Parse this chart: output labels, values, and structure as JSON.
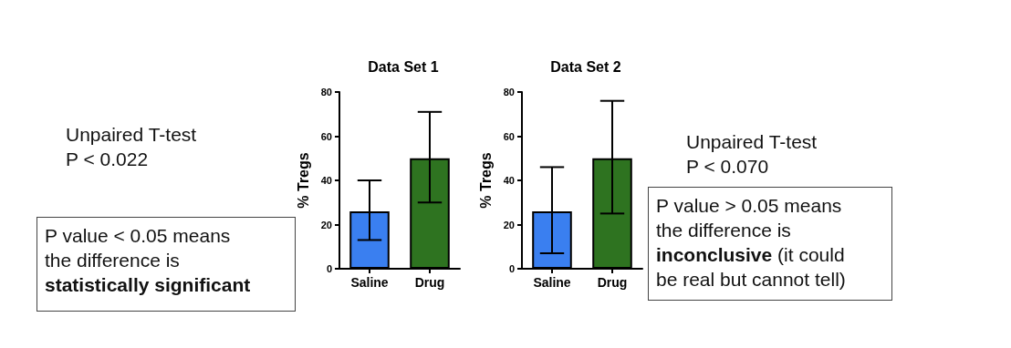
{
  "chart_data": [
    {
      "type": "bar",
      "title": "Data Set 1",
      "ylabel": "% Tregs",
      "categories": [
        "Saline",
        "Drug"
      ],
      "values": [
        26,
        50
      ],
      "colors": [
        "#3a7ff0",
        "#2e7320"
      ],
      "errors": [
        [
          13,
          40
        ],
        [
          30,
          71
        ]
      ],
      "ylim": [
        0,
        80
      ],
      "yticks": [
        0,
        20,
        40,
        60,
        80
      ],
      "grid": false,
      "annotations": [
        "Unpaired T-test\nP < 0.022",
        "P value < 0.05 means\nthe difference is",
        "statistically significant"
      ]
    },
    {
      "type": "bar",
      "title": "Data Set 2",
      "ylabel": "% Tregs",
      "categories": [
        "Saline",
        "Drug"
      ],
      "values": [
        26,
        50
      ],
      "colors": [
        "#3a7ff0",
        "#2e7320"
      ],
      "errors": [
        [
          7,
          46
        ],
        [
          25,
          76
        ]
      ],
      "ylim": [
        0,
        80
      ],
      "yticks": [
        0,
        20,
        40,
        60,
        80
      ],
      "grid": false,
      "annotations": [
        "Unpaired T-test\nP < 0.070",
        "P value > 0.05 means\nthe difference is",
        "inconclusive",
        "(it could\nbe real but cannot tell)"
      ]
    }
  ]
}
